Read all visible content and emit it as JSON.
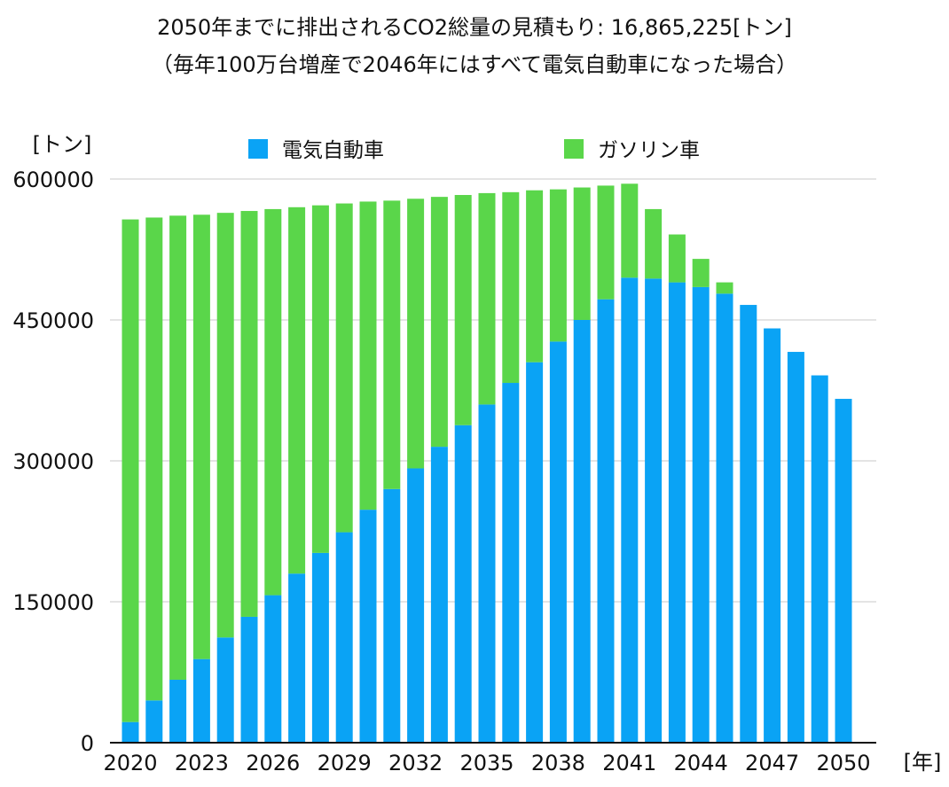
{
  "title_line1": "2050年までに排出されるCO2総量の見積もり: 16,865,225[トン]",
  "title_line2": "（毎年100万台増産で2046年にはすべて電気自動車になった場合）",
  "chart_data": {
    "type": "bar",
    "stacked": true,
    "ylabel": "[トン]",
    "xlabel": "[年]",
    "ylim": [
      0,
      600000
    ],
    "yticks": [
      0,
      150000,
      300000,
      450000,
      600000
    ],
    "xtick_labels": [
      "2020",
      "2023",
      "2026",
      "2029",
      "2032",
      "2035",
      "2038",
      "2041",
      "2044",
      "2047",
      "2050"
    ],
    "legend_position": "top",
    "grid": true,
    "categories": [
      "2020",
      "2021",
      "2022",
      "2023",
      "2024",
      "2025",
      "2026",
      "2027",
      "2028",
      "2029",
      "2030",
      "2031",
      "2032",
      "2033",
      "2034",
      "2035",
      "2036",
      "2037",
      "2038",
      "2039",
      "2040",
      "2041",
      "2042",
      "2043",
      "2044",
      "2045",
      "2046",
      "2047",
      "2048",
      "2049",
      "2050"
    ],
    "series": [
      {
        "name": "電気自動車",
        "color": "#0AA3F5",
        "values": [
          22000,
          45000,
          67000,
          89000,
          112000,
          134000,
          157000,
          180000,
          202000,
          224000,
          248000,
          270000,
          292000,
          315000,
          338000,
          360000,
          383000,
          405000,
          427000,
          450000,
          472000,
          495000,
          494000,
          490000,
          485000,
          478000,
          466000,
          441000,
          416000,
          391000,
          366000
        ]
      },
      {
        "name": "ガソリン車",
        "color": "#5AD64A",
        "values": [
          535000,
          514000,
          494000,
          473000,
          452000,
          432000,
          411000,
          390000,
          370000,
          350000,
          328000,
          307000,
          287000,
          266000,
          245000,
          225000,
          203000,
          183000,
          162000,
          141000,
          121000,
          100000,
          74000,
          51000,
          30000,
          12000,
          0,
          0,
          0,
          0,
          0
        ]
      }
    ]
  }
}
